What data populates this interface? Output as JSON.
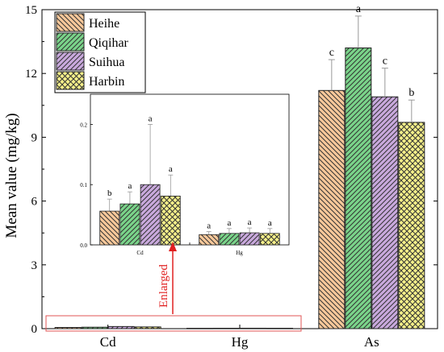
{
  "chart_data": {
    "type": "bar",
    "ylabel": "Mean value (mg/kg)",
    "ylim": [
      0,
      15
    ],
    "yticks": [
      "0",
      "3",
      "6",
      "9",
      "12",
      "15"
    ],
    "categories": [
      "Cd",
      "Hg",
      "As"
    ],
    "legend": {
      "placement": "top-left"
    },
    "series": [
      {
        "name": "Heihe",
        "color": "#f6c89a",
        "pattern": "diag-left",
        "values": [
          0.056,
          0.017,
          11.2
        ],
        "errors": [
          0.02,
          0.005,
          1.45
        ],
        "letters": [
          "b",
          "a",
          "c"
        ]
      },
      {
        "name": "Qiqihar",
        "color": "#7ad48a",
        "pattern": "diag-right",
        "values": [
          0.068,
          0.019,
          13.2
        ],
        "errors": [
          0.02,
          0.008,
          1.5
        ],
        "letters": [
          "a",
          "a",
          "a"
        ]
      },
      {
        "name": "Suihua",
        "color": "#c9a9dd",
        "pattern": "diag-right",
        "values": [
          0.1,
          0.02,
          10.9
        ],
        "errors": [
          0.1,
          0.008,
          1.35
        ],
        "letters": [
          "a",
          "a",
          "c"
        ]
      },
      {
        "name": "Harbin",
        "color": "#f5f08a",
        "pattern": "cross",
        "values": [
          0.081,
          0.019,
          9.7
        ],
        "errors": [
          0.035,
          0.008,
          1.05
        ],
        "letters": [
          "a",
          "a",
          "b"
        ]
      }
    ],
    "inset": {
      "ylim": [
        0,
        0.25
      ],
      "yticks": [
        "0.0",
        "0.1",
        "0.2"
      ],
      "categories": [
        "Cd",
        "Hg"
      ]
    },
    "annotation": "Enlarged"
  }
}
